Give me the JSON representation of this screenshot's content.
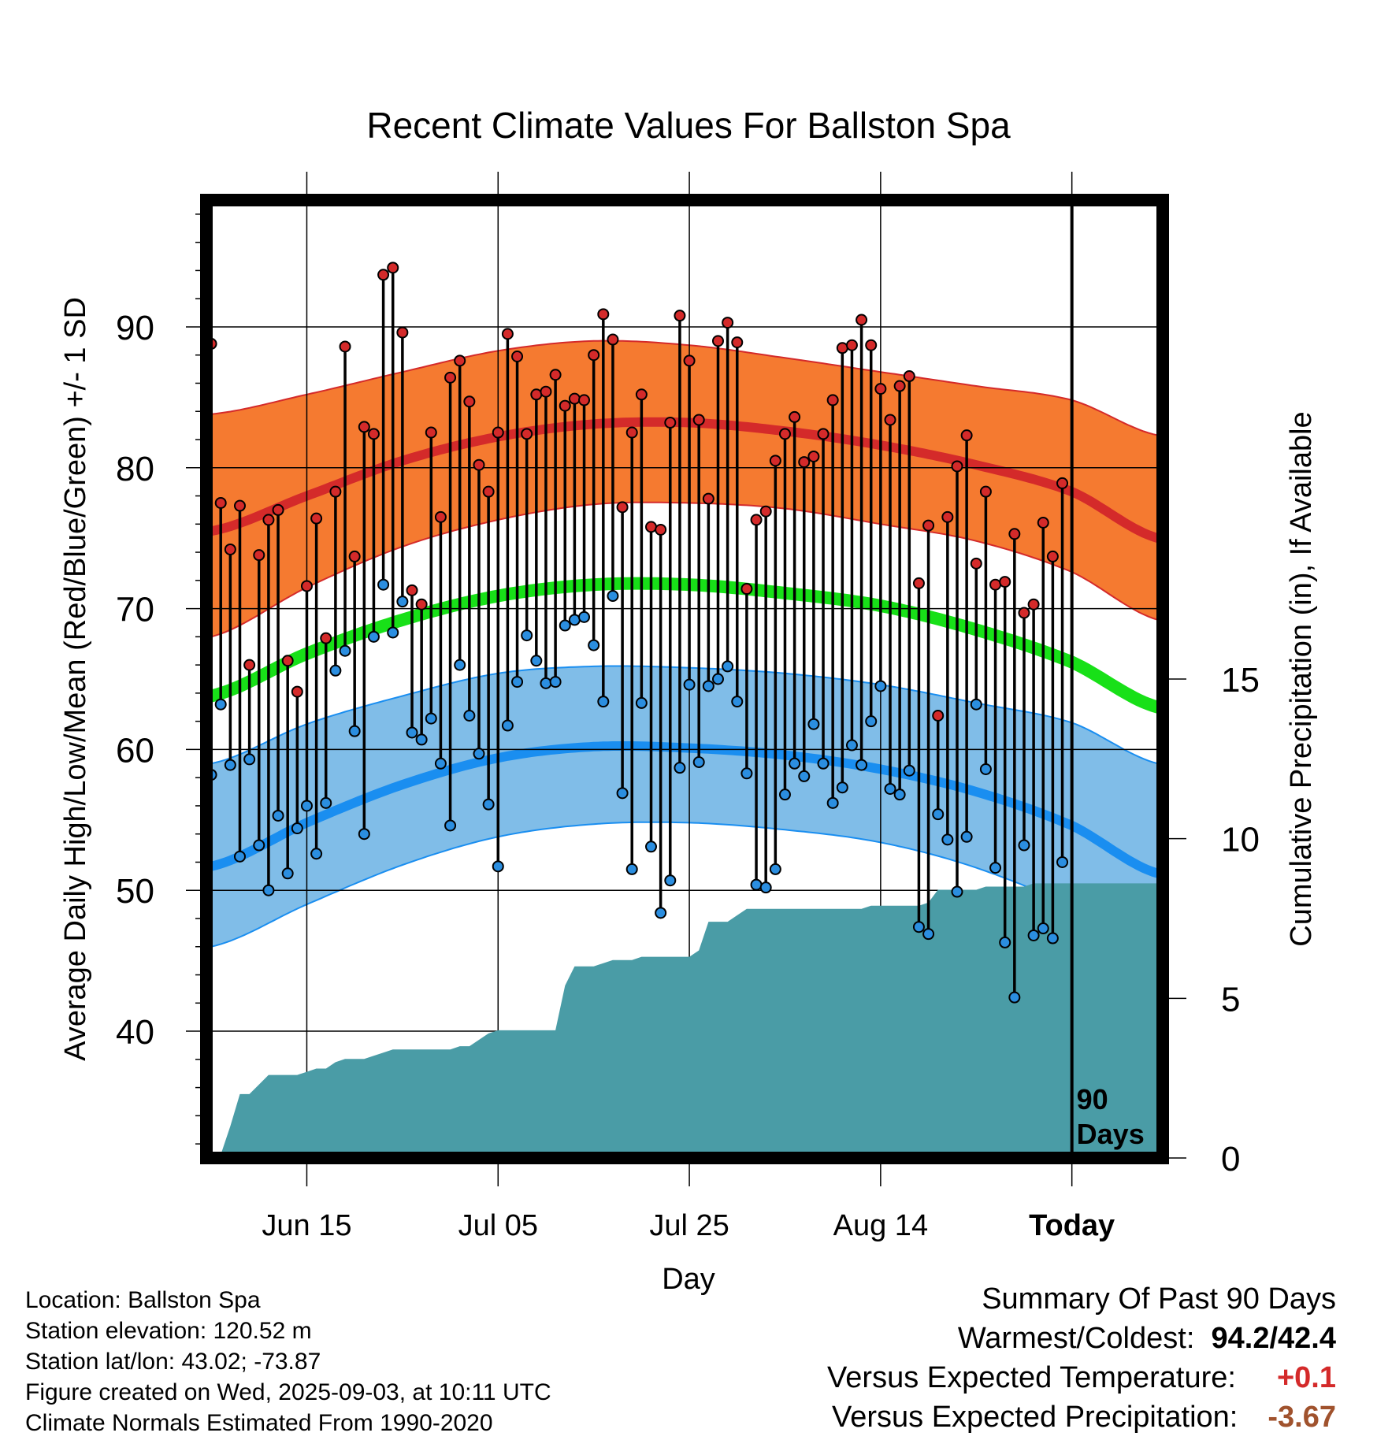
{
  "title": "Recent Climate Values For Ballston Spa",
  "info": {
    "location": "Location: Ballston Spa",
    "elevation": "Station elevation: 120.52 m",
    "latlon": "Station lat/lon: 43.02; -73.87",
    "created": "Figure created on Wed, 2025-09-03, at 10:11 UTC",
    "normals": "Climate Normals Estimated From 1990-2020"
  },
  "summary": {
    "heading": "Summary Of Past 90 Days",
    "warmest_label": "Warmest/Coldest:",
    "warmest_value": "94.2/42.4",
    "temp_label": "Versus Expected Temperature:",
    "temp_value": "+0.1",
    "precip_label": "Versus Expected Precipitation:",
    "precip_value": "-3.67"
  },
  "colors": {
    "high_marker": "#d42a2a",
    "low_marker": "#2b8ee0",
    "high_band": "#f57a30",
    "high_mean": "#d42a2a",
    "low_band": "#80bde8",
    "low_mean": "#1a8ef0",
    "mean_line": "#18e018",
    "precip_fill": "#4a9ca6"
  },
  "chart_data": {
    "type": "line",
    "title": "Recent Climate Values For Ballston Spa",
    "xlabel": "Day",
    "ylabel": "Average Daily High/Low/Mean (Red/Blue/Green) +/- 1 SD",
    "y2label": "Cumulative Precipitation (in), If Available",
    "x_ticks": [
      "Jun 15",
      "Jul 05",
      "Jul 25",
      "Aug 14",
      "Today"
    ],
    "x_tick_days": [
      10,
      30,
      50,
      70,
      90
    ],
    "ylim": [
      31,
      99
    ],
    "y_ticks": [
      40,
      50,
      60,
      70,
      80,
      90
    ],
    "y2lim": [
      0,
      30
    ],
    "y2_ticks": [
      0,
      5,
      10,
      15
    ],
    "xlim": [
      -0.5,
      99.5
    ],
    "today_day": 90,
    "today_label": [
      "90",
      "Days"
    ],
    "grid": true,
    "normal_high_mean": [
      [
        0,
        75.5
      ],
      [
        10,
        78.0
      ],
      [
        20,
        80.5
      ],
      [
        30,
        82.2
      ],
      [
        40,
        83.1
      ],
      [
        50,
        83.2
      ],
      [
        60,
        82.6
      ],
      [
        70,
        81.6
      ],
      [
        80,
        80.2
      ],
      [
        90,
        78.3
      ],
      [
        99,
        75.0
      ]
    ],
    "normal_high_sd_upper": [
      [
        0,
        83.8
      ],
      [
        10,
        85.2
      ],
      [
        20,
        86.8
      ],
      [
        30,
        88.3
      ],
      [
        40,
        89.0
      ],
      [
        50,
        88.7
      ],
      [
        60,
        87.8
      ],
      [
        70,
        86.8
      ],
      [
        80,
        85.8
      ],
      [
        90,
        84.8
      ],
      [
        99,
        82.3
      ]
    ],
    "normal_high_sd_lower": [
      [
        0,
        68.0
      ],
      [
        10,
        71.5
      ],
      [
        20,
        74.4
      ],
      [
        30,
        76.3
      ],
      [
        40,
        77.4
      ],
      [
        50,
        77.5
      ],
      [
        60,
        77.1
      ],
      [
        70,
        76.0
      ],
      [
        80,
        74.8
      ],
      [
        90,
        72.6
      ],
      [
        99,
        69.2
      ]
    ],
    "normal_mean": [
      [
        0,
        63.8
      ],
      [
        10,
        66.8
      ],
      [
        20,
        69.2
      ],
      [
        30,
        70.9
      ],
      [
        40,
        71.7
      ],
      [
        50,
        71.7
      ],
      [
        60,
        71.1
      ],
      [
        70,
        70.2
      ],
      [
        80,
        68.5
      ],
      [
        90,
        66.2
      ],
      [
        99,
        63.0
      ]
    ],
    "normal_low_mean": [
      [
        0,
        51.7
      ],
      [
        10,
        54.8
      ],
      [
        20,
        57.5
      ],
      [
        30,
        59.4
      ],
      [
        40,
        60.2
      ],
      [
        50,
        60.1
      ],
      [
        60,
        59.6
      ],
      [
        70,
        58.6
      ],
      [
        80,
        57.0
      ],
      [
        90,
        54.6
      ],
      [
        99,
        51.2
      ]
    ],
    "normal_low_sd_upper": [
      [
        0,
        59.0
      ],
      [
        10,
        61.8
      ],
      [
        20,
        63.8
      ],
      [
        30,
        65.4
      ],
      [
        40,
        65.9
      ],
      [
        50,
        65.8
      ],
      [
        60,
        65.4
      ],
      [
        70,
        64.6
      ],
      [
        80,
        63.3
      ],
      [
        90,
        61.9
      ],
      [
        99,
        59.0
      ]
    ],
    "normal_low_sd_lower": [
      [
        0,
        46.0
      ],
      [
        10,
        49.0
      ],
      [
        20,
        51.8
      ],
      [
        30,
        53.8
      ],
      [
        40,
        54.7
      ],
      [
        50,
        54.8
      ],
      [
        60,
        54.3
      ],
      [
        70,
        53.4
      ],
      [
        80,
        51.6
      ],
      [
        90,
        48.8
      ],
      [
        99,
        44.8
      ]
    ],
    "series": [
      {
        "name": "High",
        "values": [
          88.8,
          77.5,
          74.2,
          77.3,
          66.0,
          73.8,
          76.3,
          77.0,
          66.3,
          64.1,
          71.6,
          76.4,
          67.9,
          78.3,
          88.6,
          73.7,
          82.9,
          82.4,
          93.7,
          94.2,
          89.6,
          71.3,
          70.3,
          82.5,
          76.5,
          86.4,
          87.6,
          84.7,
          80.2,
          78.3,
          82.5,
          89.5,
          87.9,
          82.4,
          85.2,
          85.4,
          86.6,
          84.4,
          84.9,
          84.8,
          88.0,
          90.9,
          89.1,
          77.2,
          82.5,
          85.2,
          75.8,
          75.6,
          83.2,
          90.8,
          87.6,
          83.4,
          77.8,
          89.0,
          90.3,
          88.9,
          71.4,
          76.3,
          76.9,
          80.5,
          82.4,
          83.6,
          80.4,
          80.8,
          82.4,
          84.8,
          88.5,
          88.7,
          90.5,
          88.7,
          85.6,
          83.4,
          85.8,
          86.5,
          71.8,
          75.9,
          62.4,
          76.5,
          80.1,
          82.3,
          73.2,
          78.3,
          71.7,
          71.9,
          75.3,
          69.7,
          70.3,
          76.1,
          73.7,
          78.9
        ]
      },
      {
        "name": "Low",
        "values": [
          58.2,
          63.2,
          58.9,
          52.4,
          59.3,
          53.2,
          50.0,
          55.3,
          51.2,
          54.4,
          56.0,
          52.6,
          56.2,
          65.6,
          67.0,
          61.3,
          54.0,
          68.0,
          71.7,
          68.3,
          70.5,
          61.2,
          60.7,
          62.2,
          59.0,
          54.6,
          66.0,
          62.4,
          59.7,
          56.1,
          51.7,
          61.7,
          64.8,
          68.1,
          66.3,
          64.7,
          64.8,
          68.8,
          69.2,
          69.4,
          67.4,
          63.4,
          70.9,
          56.9,
          51.5,
          63.3,
          53.1,
          48.4,
          50.7,
          58.7,
          64.6,
          59.1,
          64.5,
          65.0,
          65.9,
          63.4,
          58.3,
          50.4,
          50.2,
          51.5,
          56.8,
          59.0,
          58.1,
          61.8,
          59.0,
          56.2,
          57.3,
          60.3,
          58.9,
          62.0,
          64.5,
          57.2,
          56.8,
          58.5,
          47.4,
          46.9,
          55.4,
          53.6,
          49.9,
          53.8,
          63.2,
          58.6,
          51.6,
          46.3,
          42.4,
          53.2,
          46.8,
          47.3,
          46.6,
          52.0
        ]
      }
    ],
    "precip_cumulative": [
      [
        0,
        0.0
      ],
      [
        1,
        0.1
      ],
      [
        2,
        1.0
      ],
      [
        3,
        2.0
      ],
      [
        4,
        2.0
      ],
      [
        5,
        2.3
      ],
      [
        6,
        2.6
      ],
      [
        7,
        2.6
      ],
      [
        8,
        2.6
      ],
      [
        9,
        2.6
      ],
      [
        10,
        2.7
      ],
      [
        11,
        2.8
      ],
      [
        12,
        2.8
      ],
      [
        13,
        3.0
      ],
      [
        14,
        3.1
      ],
      [
        15,
        3.1
      ],
      [
        16,
        3.1
      ],
      [
        17,
        3.2
      ],
      [
        18,
        3.3
      ],
      [
        19,
        3.4
      ],
      [
        20,
        3.4
      ],
      [
        21,
        3.4
      ],
      [
        22,
        3.4
      ],
      [
        23,
        3.4
      ],
      [
        24,
        3.4
      ],
      [
        25,
        3.4
      ],
      [
        26,
        3.5
      ],
      [
        27,
        3.5
      ],
      [
        28,
        3.7
      ],
      [
        29,
        3.9
      ],
      [
        30,
        4.0
      ],
      [
        31,
        4.0
      ],
      [
        32,
        4.0
      ],
      [
        33,
        4.0
      ],
      [
        34,
        4.0
      ],
      [
        35,
        4.0
      ],
      [
        36,
        4.0
      ],
      [
        37,
        5.4
      ],
      [
        38,
        6.0
      ],
      [
        39,
        6.0
      ],
      [
        40,
        6.0
      ],
      [
        41,
        6.1
      ],
      [
        42,
        6.2
      ],
      [
        43,
        6.2
      ],
      [
        44,
        6.2
      ],
      [
        45,
        6.3
      ],
      [
        46,
        6.3
      ],
      [
        47,
        6.3
      ],
      [
        48,
        6.3
      ],
      [
        49,
        6.3
      ],
      [
        50,
        6.3
      ],
      [
        51,
        6.5
      ],
      [
        52,
        7.4
      ],
      [
        53,
        7.4
      ],
      [
        54,
        7.4
      ],
      [
        55,
        7.6
      ],
      [
        56,
        7.8
      ],
      [
        57,
        7.8
      ],
      [
        58,
        7.8
      ],
      [
        59,
        7.8
      ],
      [
        60,
        7.8
      ],
      [
        61,
        7.8
      ],
      [
        62,
        7.8
      ],
      [
        63,
        7.8
      ],
      [
        64,
        7.8
      ],
      [
        65,
        7.8
      ],
      [
        66,
        7.8
      ],
      [
        67,
        7.8
      ],
      [
        68,
        7.8
      ],
      [
        69,
        7.9
      ],
      [
        70,
        7.9
      ],
      [
        71,
        7.9
      ],
      [
        72,
        7.9
      ],
      [
        73,
        7.9
      ],
      [
        74,
        7.9
      ],
      [
        75,
        8.0
      ],
      [
        76,
        8.4
      ],
      [
        77,
        8.4
      ],
      [
        78,
        8.4
      ],
      [
        79,
        8.4
      ],
      [
        80,
        8.4
      ],
      [
        81,
        8.5
      ],
      [
        82,
        8.5
      ],
      [
        83,
        8.5
      ],
      [
        84,
        8.5
      ],
      [
        85,
        8.5
      ],
      [
        86,
        8.6
      ],
      [
        87,
        8.6
      ],
      [
        88,
        8.6
      ],
      [
        89,
        8.6
      ],
      [
        90,
        8.6
      ],
      [
        99.5,
        8.6
      ]
    ]
  }
}
